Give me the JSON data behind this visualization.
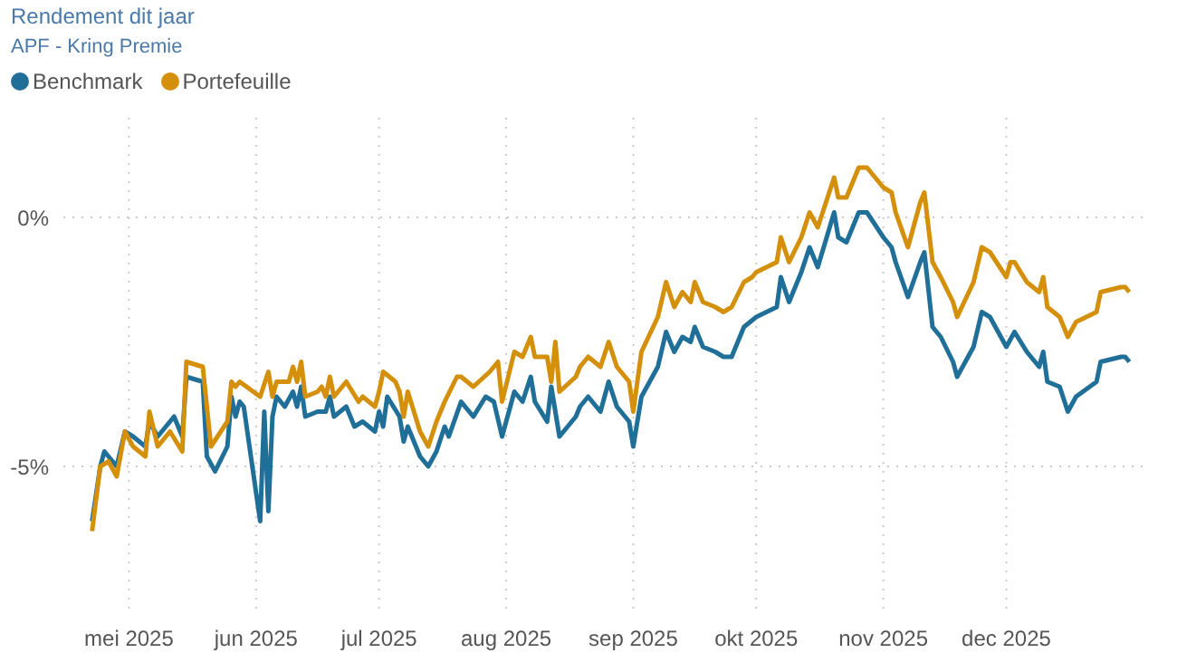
{
  "chart_data": {
    "type": "line",
    "title": "Rendement dit jaar",
    "subtitle": "APF - Kring Premie",
    "legend": "top left",
    "grid": true,
    "marker": "none",
    "line_style": "solid",
    "xlim": [
      "2025-04-15",
      "2026-01-05"
    ],
    "ylim": [
      -8,
      2
    ],
    "xticks": [
      {
        "value": "2025-05-01",
        "label": "mei 2025"
      },
      {
        "value": "2025-06-01",
        "label": "jun 2025"
      },
      {
        "value": "2025-07-01",
        "label": "jul 2025"
      },
      {
        "value": "2025-08-01",
        "label": "aug 2025"
      },
      {
        "value": "2025-09-01",
        "label": "sep 2025"
      },
      {
        "value": "2025-10-01",
        "label": "okt 2025"
      },
      {
        "value": "2025-11-01",
        "label": "nov 2025"
      },
      {
        "value": "2025-12-01",
        "label": "dec 2025"
      }
    ],
    "yticks": [
      {
        "value": -5,
        "label": "-5%"
      },
      {
        "value": 0,
        "label": "0%"
      }
    ],
    "series": [
      {
        "name": "Benchmark",
        "color": "#1f6f99",
        "x": [
          "2025-04-22",
          "2025-04-24",
          "2025-04-25",
          "2025-04-28",
          "2025-04-30",
          "2025-05-02",
          "2025-05-05",
          "2025-05-06",
          "2025-05-08",
          "2025-05-12",
          "2025-05-14",
          "2025-05-15",
          "2025-05-19",
          "2025-05-20",
          "2025-05-22",
          "2025-05-25",
          "2025-05-26",
          "2025-05-27",
          "2025-05-28",
          "2025-05-29",
          "2025-06-02",
          "2025-06-03",
          "2025-06-04",
          "2025-06-05",
          "2025-06-06",
          "2025-06-08",
          "2025-06-10",
          "2025-06-11",
          "2025-06-12",
          "2025-06-13",
          "2025-06-16",
          "2025-06-18",
          "2025-06-19",
          "2025-06-20",
          "2025-06-23",
          "2025-06-25",
          "2025-06-27",
          "2025-06-30",
          "2025-07-01",
          "2025-07-02",
          "2025-07-03",
          "2025-07-06",
          "2025-07-07",
          "2025-07-08",
          "2025-07-11",
          "2025-07-13",
          "2025-07-15",
          "2025-07-17",
          "2025-07-18",
          "2025-07-21",
          "2025-07-24",
          "2025-07-27",
          "2025-07-29",
          "2025-07-31",
          "2025-08-03",
          "2025-08-05",
          "2025-08-07",
          "2025-08-08",
          "2025-08-11",
          "2025-08-12",
          "2025-08-14",
          "2025-08-18",
          "2025-08-19",
          "2025-08-21",
          "2025-08-24",
          "2025-08-26",
          "2025-08-28",
          "2025-08-31",
          "2025-09-01",
          "2025-09-03",
          "2025-09-07",
          "2025-09-09",
          "2025-09-11",
          "2025-09-13",
          "2025-09-15",
          "2025-09-16",
          "2025-09-18",
          "2025-09-21",
          "2025-09-23",
          "2025-09-25",
          "2025-09-28",
          "2025-10-01",
          "2025-10-06",
          "2025-10-07",
          "2025-10-09",
          "2025-10-12",
          "2025-10-14",
          "2025-10-16",
          "2025-10-20",
          "2025-10-21",
          "2025-10-23",
          "2025-10-26",
          "2025-10-28",
          "2025-11-01",
          "2025-11-03",
          "2025-11-04",
          "2025-11-07",
          "2025-11-10",
          "2025-11-11",
          "2025-11-13",
          "2025-11-15",
          "2025-11-18",
          "2025-11-19",
          "2025-11-23",
          "2025-11-25",
          "2025-11-27",
          "2025-12-01",
          "2025-12-03",
          "2025-12-06",
          "2025-12-09",
          "2025-12-10",
          "2025-12-11",
          "2025-12-14",
          "2025-12-16",
          "2025-12-18",
          "2025-12-23",
          "2025-12-24",
          "2025-12-29",
          "2025-12-30",
          "2025-12-31"
        ],
        "values": [
          -6.1,
          -5.0,
          -4.7,
          -5.0,
          -4.3,
          -4.4,
          -4.6,
          -4.1,
          -4.4,
          -4.0,
          -4.4,
          -3.2,
          -3.3,
          -4.8,
          -5.1,
          -4.6,
          -3.6,
          -4.0,
          -3.7,
          -3.8,
          -6.1,
          -3.9,
          -5.9,
          -4.0,
          -3.6,
          -3.8,
          -3.5,
          -3.8,
          -3.4,
          -4.0,
          -3.9,
          -3.9,
          -3.6,
          -4.0,
          -3.8,
          -4.2,
          -4.1,
          -4.3,
          -3.9,
          -4.2,
          -3.6,
          -4.0,
          -4.5,
          -4.2,
          -4.8,
          -5.0,
          -4.7,
          -4.2,
          -4.4,
          -3.7,
          -4.0,
          -3.6,
          -3.7,
          -4.4,
          -3.5,
          -3.7,
          -3.2,
          -3.7,
          -4.1,
          -3.4,
          -4.4,
          -4.0,
          -3.8,
          -3.6,
          -3.9,
          -3.3,
          -3.8,
          -4.1,
          -4.6,
          -3.6,
          -3.0,
          -2.3,
          -2.7,
          -2.4,
          -2.5,
          -2.2,
          -2.6,
          -2.7,
          -2.8,
          -2.8,
          -2.2,
          -2.0,
          -1.8,
          -1.2,
          -1.7,
          -1.1,
          -0.6,
          -1.0,
          0.1,
          -0.4,
          -0.5,
          0.1,
          0.1,
          -0.4,
          -0.6,
          -0.9,
          -1.6,
          -0.9,
          -0.7,
          -2.2,
          -2.4,
          -2.9,
          -3.2,
          -2.6,
          -1.9,
          -2.0,
          -2.6,
          -2.3,
          -2.7,
          -3.0,
          -2.7,
          -3.3,
          -3.4,
          -3.9,
          -3.6,
          -3.3,
          -2.9,
          -2.8,
          -2.8,
          -2.9
        ]
      },
      {
        "name": "Portefeuille",
        "color": "#d4900a",
        "x": [
          "2025-04-22",
          "2025-04-24",
          "2025-04-26",
          "2025-04-28",
          "2025-04-30",
          "2025-05-02",
          "2025-05-05",
          "2025-05-06",
          "2025-05-08",
          "2025-05-11",
          "2025-05-14",
          "2025-05-15",
          "2025-05-19",
          "2025-05-21",
          "2025-05-25",
          "2025-05-26",
          "2025-05-27",
          "2025-05-28",
          "2025-06-02",
          "2025-06-04",
          "2025-06-05",
          "2025-06-06",
          "2025-06-09",
          "2025-06-10",
          "2025-06-11",
          "2025-06-12",
          "2025-06-13",
          "2025-06-16",
          "2025-06-17",
          "2025-06-18",
          "2025-06-19",
          "2025-06-20",
          "2025-06-23",
          "2025-06-26",
          "2025-06-27",
          "2025-06-30",
          "2025-07-01",
          "2025-07-02",
          "2025-07-05",
          "2025-07-06",
          "2025-07-07",
          "2025-07-08",
          "2025-07-11",
          "2025-07-13",
          "2025-07-15",
          "2025-07-17",
          "2025-07-20",
          "2025-07-21",
          "2025-07-24",
          "2025-07-28",
          "2025-07-30",
          "2025-07-31",
          "2025-08-03",
          "2025-08-05",
          "2025-08-07",
          "2025-08-08",
          "2025-08-11",
          "2025-08-12",
          "2025-08-13",
          "2025-08-14",
          "2025-08-18",
          "2025-08-19",
          "2025-08-21",
          "2025-08-24",
          "2025-08-26",
          "2025-08-28",
          "2025-08-31",
          "2025-09-01",
          "2025-09-03",
          "2025-09-07",
          "2025-09-09",
          "2025-09-11",
          "2025-09-13",
          "2025-09-15",
          "2025-09-16",
          "2025-09-18",
          "2025-09-21",
          "2025-09-23",
          "2025-09-25",
          "2025-09-28",
          "2025-09-30",
          "2025-10-01",
          "2025-10-06",
          "2025-10-07",
          "2025-10-09",
          "2025-10-12",
          "2025-10-14",
          "2025-10-16",
          "2025-10-20",
          "2025-10-21",
          "2025-10-23",
          "2025-10-26",
          "2025-10-28",
          "2025-11-01",
          "2025-11-03",
          "2025-11-04",
          "2025-11-07",
          "2025-11-10",
          "2025-11-11",
          "2025-11-13",
          "2025-11-15",
          "2025-11-18",
          "2025-11-19",
          "2025-11-23",
          "2025-11-25",
          "2025-11-27",
          "2025-12-01",
          "2025-12-02",
          "2025-12-03",
          "2025-12-06",
          "2025-12-09",
          "2025-12-10",
          "2025-12-11",
          "2025-12-14",
          "2025-12-16",
          "2025-12-18",
          "2025-12-23",
          "2025-12-24",
          "2025-12-29",
          "2025-12-30",
          "2025-12-31"
        ],
        "values": [
          -6.3,
          -5.0,
          -4.9,
          -5.2,
          -4.3,
          -4.6,
          -4.8,
          -3.9,
          -4.6,
          -4.3,
          -4.7,
          -2.9,
          -3.0,
          -4.6,
          -4.1,
          -3.3,
          -3.4,
          -3.3,
          -3.6,
          -3.1,
          -3.6,
          -3.3,
          -3.3,
          -3.0,
          -3.3,
          -2.9,
          -3.6,
          -3.5,
          -3.4,
          -3.6,
          -3.2,
          -3.6,
          -3.3,
          -3.7,
          -3.6,
          -3.8,
          -3.5,
          -3.1,
          -3.3,
          -3.5,
          -4.0,
          -3.5,
          -4.3,
          -4.6,
          -4.1,
          -3.7,
          -3.2,
          -3.2,
          -3.4,
          -3.1,
          -2.9,
          -3.7,
          -2.7,
          -2.8,
          -2.4,
          -2.8,
          -2.8,
          -3.3,
          -2.5,
          -3.5,
          -3.2,
          -3.0,
          -2.8,
          -3.0,
          -2.5,
          -3.0,
          -3.3,
          -3.9,
          -2.7,
          -2.0,
          -1.3,
          -1.8,
          -1.5,
          -1.7,
          -1.3,
          -1.7,
          -1.8,
          -1.9,
          -1.8,
          -1.3,
          -1.2,
          -1.1,
          -0.9,
          -0.4,
          -0.9,
          -0.4,
          0.1,
          -0.2,
          0.8,
          0.4,
          0.4,
          1.0,
          1.0,
          0.6,
          0.5,
          0.1,
          -0.6,
          0.3,
          0.5,
          -0.9,
          -1.2,
          -1.7,
          -2.0,
          -1.3,
          -0.6,
          -0.7,
          -1.2,
          -0.9,
          -0.9,
          -1.3,
          -1.5,
          -1.2,
          -1.8,
          -2.0,
          -2.4,
          -2.1,
          -1.9,
          -1.5,
          -1.4,
          -1.4,
          -1.5
        ]
      }
    ]
  }
}
